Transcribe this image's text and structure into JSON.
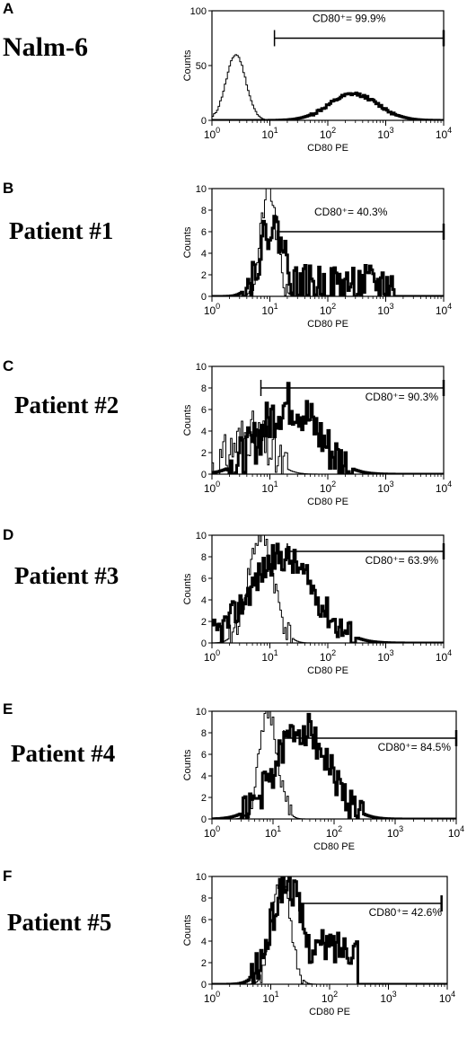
{
  "chart_data": [
    {
      "type": "histogram",
      "panel": "A",
      "sample": "Nalm-6",
      "xlabel": "CD80 PE",
      "ylabel": "Counts",
      "xscale": "log",
      "xlim": [
        1,
        10000
      ],
      "ylim": [
        0,
        100
      ],
      "y_ticks": [
        "0",
        "50",
        "100"
      ],
      "x_ticks": [
        "10^0",
        "10^1",
        "10^2",
        "10^3",
        "10^4"
      ],
      "gate": {
        "from": 12,
        "to": 10000,
        "level": 75
      },
      "annotation": "CD80⁺= 99.9%",
      "cd80_positive_percent": 99.9,
      "series": [
        {
          "role": "control",
          "style": "thin",
          "peak": 2.6,
          "width": 0.17,
          "height": 60,
          "noise": 1,
          "seed": 11
        },
        {
          "role": "stained",
          "style": "thick",
          "peak": 280,
          "width": 0.42,
          "height": 24,
          "noise": 1.5,
          "seed": 12
        }
      ]
    },
    {
      "type": "histogram",
      "panel": "B",
      "sample": "Patient #1",
      "xlabel": "CD80 PE",
      "ylabel": "Counts",
      "xscale": "log",
      "xlim": [
        1,
        10000
      ],
      "ylim": [
        0,
        10
      ],
      "y_ticks": [
        "0",
        "2",
        "4",
        "6",
        "8",
        "10"
      ],
      "x_ticks": [
        "10^0",
        "10^1",
        "10^2",
        "10^3",
        "10^4"
      ],
      "gate": {
        "from": 14,
        "to": 10000,
        "level": 6
      },
      "annotation": "CD80⁺= 40.3%",
      "cd80_positive_percent": 40.3,
      "series": [
        {
          "role": "control",
          "style": "thin",
          "peak": 9.5,
          "width": 0.13,
          "height": 10,
          "noise": 1.2,
          "seed": 21
        },
        {
          "role": "stained",
          "style": "thick",
          "peak": 11,
          "width": 0.22,
          "height": 6.5,
          "noise": 1.8,
          "seed": 22,
          "tail": {
            "from": 20,
            "to": 1400,
            "level": 1.1
          }
        }
      ]
    },
    {
      "type": "histogram",
      "panel": "C",
      "sample": "Patient #2",
      "xlabel": "CD80 PE",
      "ylabel": "Counts",
      "xscale": "log",
      "xlim": [
        1,
        10000
      ],
      "ylim": [
        0,
        10
      ],
      "y_ticks": [
        "0",
        "2",
        "4",
        "6",
        "8",
        "10"
      ],
      "x_ticks": [
        "10^0",
        "10^1",
        "10^2",
        "10^3",
        "10^4"
      ],
      "gate": {
        "from": 7,
        "to": 10000,
        "level": 8
      },
      "annotation": "CD80⁺= 90.3%",
      "cd80_positive_percent": 90.3,
      "series": [
        {
          "role": "control",
          "style": "thin",
          "peak": 4.5,
          "width": 0.32,
          "height": 3.8,
          "noise": 2.2,
          "seed": 31
        },
        {
          "role": "stained",
          "style": "thick",
          "peak": 22,
          "width": 0.48,
          "height": 6.5,
          "noise": 2.2,
          "seed": 32
        }
      ]
    },
    {
      "type": "histogram",
      "panel": "D",
      "sample": "Patient #3",
      "xlabel": "CD80 PE",
      "ylabel": "Counts",
      "xscale": "log",
      "xlim": [
        1,
        10000
      ],
      "ylim": [
        0,
        10
      ],
      "y_ticks": [
        "0",
        "2",
        "4",
        "6",
        "8",
        "10"
      ],
      "x_ticks": [
        "10^0",
        "10^1",
        "10^2",
        "10^3",
        "10^4"
      ],
      "gate": {
        "from": 20,
        "to": 10000,
        "level": 8.5
      },
      "annotation": "CD80⁺= 63.9%",
      "cd80_positive_percent": 63.9,
      "series": [
        {
          "role": "control",
          "style": "thin",
          "peak": 7,
          "width": 0.22,
          "height": 10,
          "noise": 1.2,
          "seed": 41
        },
        {
          "role": "stained",
          "style": "thick",
          "peak": 16,
          "width": 0.55,
          "height": 8,
          "noise": 1.4,
          "seed": 42
        }
      ]
    },
    {
      "type": "histogram",
      "panel": "E",
      "sample": "Patient #4",
      "xlabel": "CD80 PE",
      "ylabel": "Counts",
      "xscale": "log",
      "xlim": [
        1,
        10000
      ],
      "ylim": [
        0,
        10
      ],
      "y_ticks": [
        "0",
        "2",
        "4",
        "6",
        "8",
        "10"
      ],
      "x_ticks": [
        "10^0",
        "10^1",
        "10^2",
        "10^3",
        "10^4"
      ],
      "gate": {
        "from": 15,
        "to": 10000,
        "level": 7.5
      },
      "annotation": "CD80⁺= 84.5%",
      "cd80_positive_percent": 84.5,
      "series": [
        {
          "role": "control",
          "style": "thin",
          "peak": 8.5,
          "width": 0.15,
          "height": 9.8,
          "noise": 1.0,
          "seed": 51
        },
        {
          "role": "stained",
          "style": "thick",
          "peak": 30,
          "width": 0.42,
          "height": 8.5,
          "noise": 1.6,
          "seed": 52
        }
      ]
    },
    {
      "type": "histogram",
      "panel": "F",
      "sample": "Patient #5",
      "xlabel": "CD80 PE",
      "ylabel": "Counts",
      "xscale": "log",
      "xlim": [
        1,
        10000
      ],
      "ylim": [
        0,
        10
      ],
      "y_ticks": [
        "0",
        "2",
        "4",
        "6",
        "8",
        "10"
      ],
      "x_ticks": [
        "10^0",
        "10^1",
        "10^2",
        "10^3",
        "10^4"
      ],
      "gate": {
        "from": 30,
        "to": 8000,
        "level": 7.5
      },
      "annotation": "CD80⁺= 42.6%",
      "cd80_positive_percent": 42.6,
      "series": [
        {
          "role": "control",
          "style": "thin",
          "peak": 15,
          "width": 0.15,
          "height": 10,
          "noise": 0.8,
          "seed": 61
        },
        {
          "role": "stained",
          "style": "thick",
          "peak": 19,
          "width": 0.26,
          "height": 9.5,
          "noise": 1.6,
          "seed": 62,
          "tail": {
            "from": 40,
            "to": 300,
            "level": 3.5
          }
        }
      ]
    }
  ]
}
